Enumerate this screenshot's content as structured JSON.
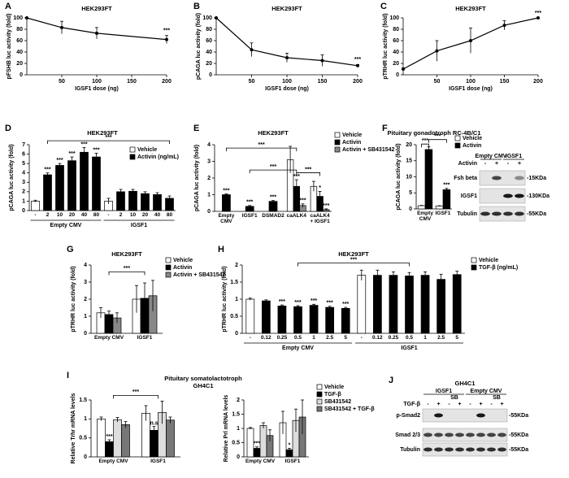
{
  "chart_data": [
    {
      "type": "line",
      "panel": "A",
      "title": "HEK293FT",
      "x_label": "IGSF1 dose (ng)",
      "y_label": "pFSHB luc activity (fold)",
      "x": [
        0,
        50,
        100,
        200
      ],
      "values": [
        100,
        83,
        73,
        62
      ],
      "errors": [
        0,
        11,
        10,
        7
      ],
      "stars": [
        null,
        null,
        null,
        "***"
      ],
      "xlim": [
        0,
        200
      ],
      "xticks": [
        50,
        100,
        150,
        200
      ],
      "ylim": [
        0,
        100
      ],
      "yticks": [
        0,
        20,
        40,
        60,
        80,
        100
      ]
    },
    {
      "type": "line",
      "panel": "B",
      "title": "HEK293FT",
      "x_label": "IGSF1 dose (ng)",
      "y_label": "pCAGA luc activity (fold)",
      "x": [
        0,
        50,
        100,
        150,
        200
      ],
      "values": [
        100,
        44,
        30,
        25,
        16
      ],
      "errors": [
        0,
        12,
        8,
        10,
        2
      ],
      "stars": [
        null,
        null,
        null,
        null,
        "***"
      ],
      "xlim": [
        0,
        200
      ],
      "xticks": [
        50,
        100,
        150,
        200
      ],
      "ylim": [
        0,
        100
      ],
      "yticks": [
        0,
        20,
        40,
        60,
        80,
        100
      ]
    },
    {
      "type": "line",
      "panel": "C",
      "title": "HEK293FT",
      "x_label": "IGSF1 dose (ng)",
      "y_label": "pTRHR luc activity (fold)",
      "x": [
        0,
        50,
        100,
        150,
        200
      ],
      "values": [
        10,
        42,
        60,
        87,
        100
      ],
      "errors": [
        2,
        18,
        22,
        8,
        0
      ],
      "stars": [
        null,
        null,
        null,
        null,
        "***"
      ],
      "xlim": [
        0,
        200
      ],
      "xticks": [
        50,
        100,
        150,
        200
      ],
      "ylim": [
        0,
        100
      ],
      "yticks": [
        0,
        20,
        40,
        60,
        80,
        100
      ]
    },
    {
      "type": "bar",
      "panel": "D",
      "title": "HEK293FT",
      "y_label": "pCAGA luc activity (fold)",
      "legend": true,
      "groups": [
        {
          "name": "Empty CMV",
          "categories": [
            "-",
            "2",
            "10",
            "20",
            "40",
            "80"
          ]
        },
        {
          "name": "IGSF1",
          "categories": [
            "-",
            "2",
            "10",
            "20",
            "40",
            "80"
          ]
        }
      ],
      "series": [
        {
          "name": "Vehicle",
          "color": "#ffffff",
          "values": [
            1.0,
            null,
            null,
            null,
            null,
            null,
            1.0,
            null,
            null,
            null,
            null,
            null
          ],
          "errors": [
            0.1,
            null,
            null,
            null,
            null,
            null,
            0.3,
            null,
            null,
            null,
            null,
            null
          ]
        },
        {
          "name": "Activin (ng/mL)",
          "color": "#000000",
          "values": [
            null,
            3.8,
            4.8,
            5.3,
            6.2,
            5.7,
            null,
            2.0,
            2.05,
            1.8,
            1.7,
            1.3
          ],
          "errors": [
            null,
            0.2,
            0.2,
            0.4,
            0.5,
            0.4,
            null,
            0.25,
            0.2,
            0.2,
            0.2,
            0.25
          ],
          "stars": [
            null,
            "***",
            "***",
            "***",
            "***",
            "***",
            null,
            null,
            null,
            null,
            null,
            null
          ]
        }
      ],
      "bracket_labels": [
        "***"
      ],
      "ylim": [
        0,
        7
      ],
      "yticks": [
        0,
        1,
        2,
        3,
        4,
        5,
        6,
        7
      ]
    },
    {
      "type": "bar",
      "panel": "E",
      "title": "HEK293FT",
      "y_label": "pCAGA luc activity (fold)",
      "legend": true,
      "categories": [
        "Empty CMV",
        "IGSF1",
        "DSMAD2",
        "caALK4",
        "caALK4 + IGSF1"
      ],
      "series": [
        {
          "name": "Vehicle",
          "color": "#ffffff",
          "values": [
            null,
            null,
            null,
            3.1,
            1.5
          ],
          "errors": [
            null,
            null,
            null,
            0.8,
            0.3
          ]
        },
        {
          "name": "Activin",
          "color": "#000000",
          "values": [
            1.0,
            0.3,
            0.6,
            1.5,
            0.9
          ],
          "errors": [
            0.05,
            0.05,
            0.05,
            0.4,
            0.3
          ],
          "stars": [
            "***",
            "***",
            "***",
            "***",
            "*"
          ]
        },
        {
          "name": "Activin + SB431542",
          "color": "#888888",
          "values": [
            null,
            null,
            null,
            0.35,
            0.1
          ],
          "errors": [
            null,
            null,
            null,
            0.1,
            0.05
          ],
          "stars": [
            null,
            null,
            null,
            "***",
            "***"
          ]
        }
      ],
      "bracket_labels": [
        "***",
        "***",
        "***"
      ],
      "ylim": [
        0,
        4
      ],
      "yticks": [
        0,
        1,
        2,
        3,
        4
      ]
    },
    {
      "type": "bar",
      "panel": "F",
      "title": "Pituitary gonadotroph RC-4B/C1",
      "y_label": "pCAGA luc activity (fold)",
      "legend": true,
      "categories": [
        "Empty CMV",
        "IGSF1"
      ],
      "series": [
        {
          "name": "Vehicle",
          "color": "#ffffff",
          "values": [
            1.0,
            0.9
          ],
          "errors": [
            0.1,
            0.1
          ]
        },
        {
          "name": "Activin",
          "color": "#000000",
          "values": [
            18.5,
            6.0
          ],
          "errors": [
            0.8,
            0.4
          ],
          "stars": [
            null,
            "***"
          ]
        }
      ],
      "bracket_labels": [
        "***",
        "***"
      ],
      "ylim": [
        0,
        20
      ],
      "yticks": [
        0,
        5,
        10,
        15,
        20
      ]
    },
    {
      "type": "bar",
      "panel": "G",
      "title": "HEK293FT",
      "y_label": "pTRHR luc activity (fold)",
      "legend": true,
      "categories": [
        "Empty CMV",
        "IGSF1"
      ],
      "series": [
        {
          "name": "Vehicle",
          "color": "#ffffff",
          "values": [
            1.2,
            2.0
          ],
          "errors": [
            0.3,
            0.8
          ]
        },
        {
          "name": "Activin",
          "color": "#000000",
          "values": [
            1.1,
            2.05
          ],
          "errors": [
            0.2,
            0.9
          ]
        },
        {
          "name": "Activin + SB431542",
          "color": "#888888",
          "values": [
            0.9,
            2.2
          ],
          "errors": [
            0.3,
            0.9
          ]
        }
      ],
      "bracket_labels": [
        "***"
      ],
      "ylim": [
        0,
        4
      ],
      "yticks": [
        0,
        1,
        2,
        3,
        4
      ]
    },
    {
      "type": "bar",
      "panel": "H",
      "title": "HEK293FT",
      "y_label": "pTRHR luc activity (fold)",
      "legend": true,
      "groups": [
        {
          "name": "Empty CMV",
          "categories": [
            "-",
            "0.12",
            "0.25",
            "0.5",
            "1",
            "2.5",
            "5"
          ]
        },
        {
          "name": "IGSF1",
          "categories": [
            "-",
            "0.12",
            "0.25",
            "0.5",
            "1",
            "2.5",
            "5"
          ]
        }
      ],
      "series": [
        {
          "name": "Vehicle",
          "color": "#ffffff",
          "values": [
            1.0,
            null,
            null,
            null,
            null,
            null,
            null,
            1.7,
            null,
            null,
            null,
            null,
            null,
            null
          ],
          "errors": [
            0.03,
            null,
            null,
            null,
            null,
            null,
            null,
            0.15,
            null,
            null,
            null,
            null,
            null,
            null
          ]
        },
        {
          "name": "TGF-β (ng/mL)",
          "color": "#000000",
          "values": [
            null,
            0.95,
            0.8,
            0.78,
            0.82,
            0.76,
            0.73,
            null,
            1.7,
            1.7,
            1.68,
            1.7,
            1.58,
            1.72
          ],
          "errors": [
            null,
            0.03,
            0.03,
            0.03,
            0.03,
            0.03,
            0.03,
            null,
            0.15,
            0.1,
            0.1,
            0.1,
            0.15,
            0.1
          ],
          "stars": [
            null,
            null,
            "***",
            "***",
            "***",
            "***",
            "***",
            null,
            null,
            null,
            null,
            null,
            null,
            null
          ]
        }
      ],
      "bracket_labels": [
        "***"
      ],
      "ylim": [
        0,
        2
      ],
      "yticks": [
        0,
        0.5,
        1,
        1.5,
        2
      ]
    },
    {
      "type": "bar",
      "panel": "I",
      "title": "Pituitary somatolactotroph",
      "subtitle": "GH4C1",
      "y_label": "Relative Trhr mRNA levels",
      "legend": false,
      "categories": [
        "Empty CMV",
        "IGSF1"
      ],
      "series": [
        {
          "name": "Vehicle",
          "color": "#ffffff",
          "values": [
            1.0,
            1.15
          ],
          "errors": [
            0.05,
            0.2
          ]
        },
        {
          "name": "TGF-β",
          "color": "#000000",
          "values": [
            0.4,
            0.7
          ],
          "errors": [
            0.05,
            0.1
          ],
          "stars": [
            "***",
            "n.s"
          ]
        },
        {
          "name": "SB431542",
          "color": "#dddddd",
          "values": [
            0.98,
            1.17
          ],
          "errors": [
            0.06,
            0.3
          ]
        },
        {
          "name": "SB431542 + TGF-β",
          "color": "#777777",
          "values": [
            0.85,
            0.97
          ],
          "errors": [
            0.08,
            0.08
          ]
        }
      ],
      "bracket_labels": [
        "***"
      ],
      "ylim": [
        0,
        1.5
      ],
      "yticks": [
        0,
        0.5,
        1,
        1.5
      ]
    },
    {
      "type": "bar",
      "y_label": "Relative Prl mRNA levels",
      "legend": true,
      "categories": [
        "Empty CMV",
        "IGSF1"
      ],
      "series": [
        {
          "name": "Vehicle",
          "color": "#ffffff",
          "values": [
            1.0,
            1.2
          ],
          "errors": [
            0.03,
            0.4
          ]
        },
        {
          "name": "TGF-β",
          "color": "#000000",
          "values": [
            0.3,
            0.25
          ],
          "errors": [
            0.05,
            0.05
          ],
          "stars": [
            "***",
            "*"
          ]
        },
        {
          "name": "SB431542",
          "color": "#dddddd",
          "values": [
            1.1,
            1.28
          ],
          "errors": [
            0.1,
            0.4
          ]
        },
        {
          "name": "SB431542 + TGF-β",
          "color": "#777777",
          "values": [
            0.75,
            1.4
          ],
          "errors": [
            0.2,
            0.6
          ]
        }
      ],
      "ylim": [
        0,
        2
      ],
      "yticks": [
        0,
        0.5,
        1,
        1.5,
        2
      ]
    }
  ],
  "blots": [
    {
      "groups": [
        "Empty CMV",
        "IGSF1"
      ],
      "treatment": "Activin",
      "lanes": [
        "-",
        "+",
        "-",
        "+"
      ],
      "rows": [
        {
          "name": "Fsh beta",
          "size": "-15KDa"
        },
        {
          "name": "IGSF1",
          "size": "-130KDa"
        },
        {
          "name": "Tubulin",
          "size": "-55KDa"
        }
      ]
    },
    {
      "panel": "J",
      "title": "GH4C1",
      "groups": [
        "IGSF1",
        "Empty CMV"
      ],
      "subgroups": [
        "SB",
        "SB"
      ],
      "treatment": "TGF-β",
      "lanes": [
        "-",
        "+",
        "-",
        "+",
        "-",
        "+",
        "-",
        "+"
      ],
      "rows": [
        {
          "name": "p-Smad2",
          "size": "-55KDa"
        },
        {
          "name": "Smad 2/3",
          "size": "-55KDa"
        },
        {
          "name": "Tubulin",
          "size": "-55KDa"
        }
      ]
    }
  ]
}
